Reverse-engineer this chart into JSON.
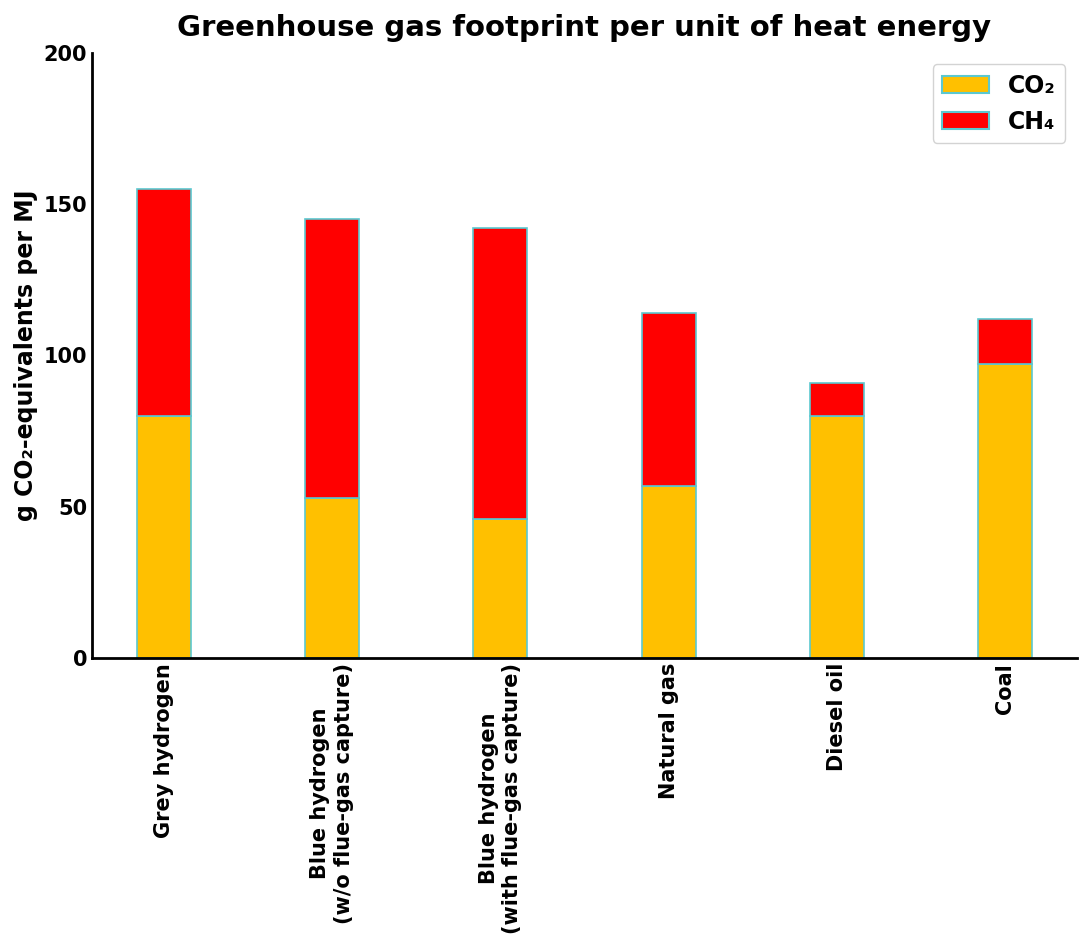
{
  "title": "Greenhouse gas footprint per unit of heat energy",
  "ylabel": "g CO₂-equivalents per MJ",
  "categories": [
    "Grey hydrogen",
    "Blue hydrogen\n(w/o flue-gas capture)",
    "Blue hydrogen\n(with flue-gas capture)",
    "Natural gas",
    "Diesel oil",
    "Coal"
  ],
  "co2_values": [
    80,
    53,
    46,
    57,
    80,
    97
  ],
  "ch4_values": [
    75,
    92,
    96,
    57,
    11,
    15
  ],
  "co2_color": "#FFC000",
  "ch4_color": "#FF0000",
  "bar_edge_color": "#5BC8D0",
  "bar_edge_width": 1.2,
  "ylim": [
    0,
    200
  ],
  "yticks": [
    0,
    50,
    100,
    150,
    200
  ],
  "legend_co2_label": "CO₂",
  "legend_ch4_label": "CH₄",
  "title_fontsize": 21,
  "axis_label_fontsize": 17,
  "tick_fontsize": 15,
  "legend_fontsize": 17,
  "bar_width": 0.32
}
